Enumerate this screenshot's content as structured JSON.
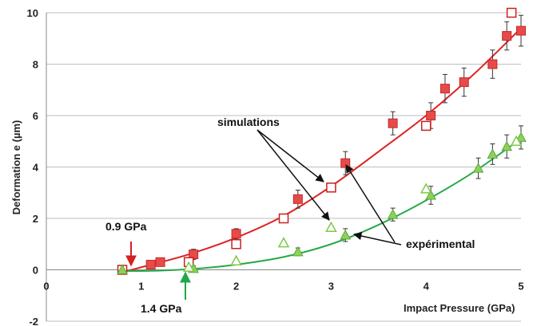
{
  "chart_data": {
    "type": "scatter",
    "xlabel": "Impact Pressure (GPa)",
    "ylabel": "Deformation e (µm)",
    "xlim": [
      0,
      5
    ],
    "ylim": [
      -2,
      10
    ],
    "x_ticks": [
      "0",
      "1",
      "2",
      "3",
      "4",
      "5"
    ],
    "y_ticks": [
      "-2",
      "0",
      "2",
      "4",
      "6",
      "8",
      "10"
    ],
    "grid": "horizontal",
    "series": [
      {
        "color": "#e84a4a",
        "marker": "filled-square",
        "points": [
          [
            0.8,
            0.0,
            0.1
          ],
          [
            1.1,
            0.2,
            0.1
          ],
          [
            1.2,
            0.3,
            0.1
          ],
          [
            1.55,
            0.6,
            0.2
          ],
          [
            2.0,
            1.4,
            0.2
          ],
          [
            2.65,
            2.75,
            0.35
          ],
          [
            3.15,
            4.15,
            0.45
          ],
          [
            3.65,
            5.7,
            0.45
          ],
          [
            4.05,
            6.0,
            0.5
          ],
          [
            4.2,
            7.05,
            0.55
          ],
          [
            4.4,
            7.3,
            0.55
          ],
          [
            4.7,
            8.0,
            0.55
          ],
          [
            4.85,
            9.1,
            0.55
          ],
          [
            5.0,
            9.3,
            0.6
          ]
        ]
      },
      {
        "color": "#cc1f1f",
        "marker": "open-square",
        "points": [
          [
            0.8,
            0.0
          ],
          [
            1.5,
            0.3
          ],
          [
            2.0,
            1.0
          ],
          [
            2.5,
            2.0
          ],
          [
            3.0,
            3.2
          ],
          [
            4.0,
            5.6
          ],
          [
            4.9,
            10.0
          ]
        ]
      },
      {
        "color": "#8ed15a",
        "marker": "filled-triangle",
        "points": [
          [
            0.8,
            0.0,
            0.05
          ],
          [
            1.55,
            0.05,
            0.1
          ],
          [
            2.65,
            0.7,
            0.15
          ],
          [
            3.15,
            1.35,
            0.25
          ],
          [
            3.65,
            2.15,
            0.25
          ],
          [
            4.05,
            2.9,
            0.35
          ],
          [
            4.55,
            3.95,
            0.4
          ],
          [
            4.7,
            4.5,
            0.4
          ],
          [
            4.85,
            4.8,
            0.45
          ],
          [
            5.0,
            5.15,
            0.45
          ]
        ]
      },
      {
        "color": "#7cc94a",
        "marker": "open-triangle",
        "points": [
          [
            1.5,
            0.1
          ],
          [
            2.0,
            0.35
          ],
          [
            2.5,
            1.05
          ],
          [
            3.0,
            1.65
          ],
          [
            4.0,
            3.15
          ],
          [
            4.95,
            5.0
          ]
        ]
      }
    ],
    "fits": [
      {
        "color": "#dd2222",
        "points": [
          [
            0.8,
            -0.1
          ],
          [
            1.0,
            0.1
          ],
          [
            1.5,
            0.6
          ],
          [
            2.0,
            1.25
          ],
          [
            2.5,
            2.1
          ],
          [
            3.0,
            3.25
          ],
          [
            3.5,
            4.6
          ],
          [
            4.0,
            6.0
          ],
          [
            4.5,
            7.6
          ],
          [
            5.0,
            9.4
          ]
        ]
      },
      {
        "color": "#27a84a",
        "points": [
          [
            0.8,
            -0.05
          ],
          [
            1.2,
            -0.03
          ],
          [
            1.6,
            0.05
          ],
          [
            2.0,
            0.2
          ],
          [
            2.5,
            0.5
          ],
          [
            3.0,
            1.0
          ],
          [
            3.5,
            1.75
          ],
          [
            4.0,
            2.7
          ],
          [
            4.5,
            3.8
          ],
          [
            5.0,
            5.1
          ]
        ]
      }
    ],
    "annotations": {
      "simulations": "simulations",
      "experimental": "expérimental",
      "red_marker": "0.9 GPa",
      "green_marker": "1.4 GPa"
    },
    "annotation_colors": {
      "red": "#d42020",
      "green": "#1fa84a"
    }
  }
}
